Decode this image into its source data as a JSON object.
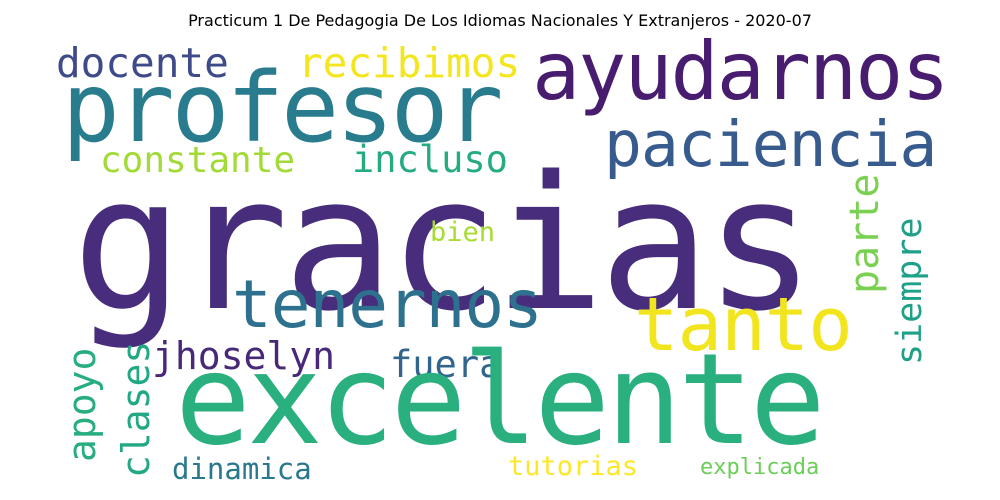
{
  "title": "Practicum 1 De Pedagogia De Los Idiomas Nacionales Y Extranjeros - 2020-07",
  "words": {
    "gracias": "gracias",
    "excelente": "excelente",
    "profesor": "profesor",
    "ayudarnos": "ayudarnos",
    "paciencia": "paciencia",
    "tenernos": "tenernos",
    "tanto": "tanto",
    "docente": "docente",
    "recibimos": "recibimos",
    "constante": "constante",
    "incluso": "incluso",
    "bien": "bien",
    "jhoselyn": "jhoselyn",
    "fuera": "fuera",
    "dinamica": "dinamica",
    "tutorias": "tutorias",
    "explicada": "explicada",
    "apoyo": "apoyo",
    "clases": "clases",
    "parte": "parte",
    "siempre": "siempre"
  },
  "colors": {
    "background": "#ffffff",
    "title": "#000000",
    "gracias": "#472d7b",
    "excelente": "#2ab07f",
    "profesor": "#287c8e",
    "ayudarnos": "#481d6f",
    "paciencia": "#375b8d",
    "tenernos": "#2d718e",
    "tanto": "#f2e51d",
    "docente": "#3e4a89",
    "recibimos": "#f4e61e",
    "constante": "#a2da37",
    "incluso": "#25ab82",
    "bien": "#a8db34",
    "jhoselyn": "#482878",
    "fuera": "#32658e",
    "dinamica": "#2a788e",
    "tutorias": "#fde725",
    "explicada": "#6ccd5a",
    "apoyo": "#27ad81",
    "clases": "#22a884",
    "parte": "#7ad151",
    "siempre": "#1fa088"
  }
}
